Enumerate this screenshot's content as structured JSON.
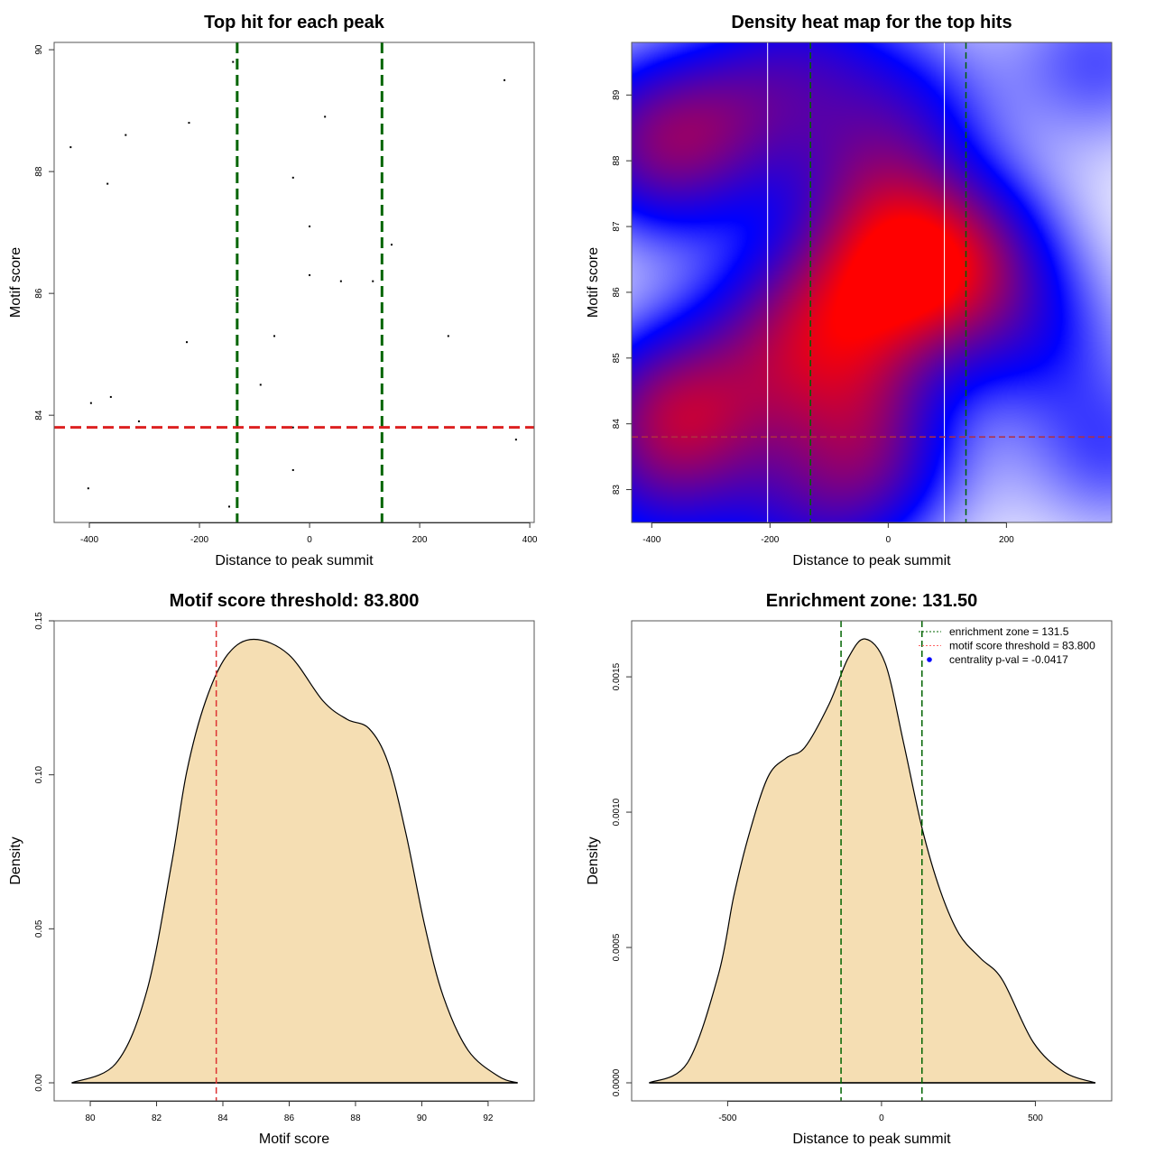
{
  "chart_data": [
    {
      "type": "scatter",
      "title": "Top hit for each peak",
      "xlabel": "Distance to peak summit",
      "ylabel": "Motif score",
      "xlim": [
        -464,
        408
      ],
      "ylim": [
        82.24,
        90.12
      ],
      "xticks": [
        -400,
        -200,
        0,
        200,
        400
      ],
      "yticks": [
        84,
        86,
        88,
        90
      ],
      "points": [
        [
          -434,
          88.4
        ],
        [
          -367,
          87.8
        ],
        [
          -334,
          88.6
        ],
        [
          -219,
          88.8
        ],
        [
          -139,
          89.8
        ],
        [
          354,
          89.5
        ],
        [
          28,
          88.9
        ],
        [
          -30,
          87.9
        ],
        [
          0,
          87.1
        ],
        [
          149,
          86.8
        ],
        [
          0,
          86.3
        ],
        [
          57,
          86.2
        ],
        [
          115,
          86.2
        ],
        [
          -131,
          85.9
        ],
        [
          -64,
          85.3
        ],
        [
          -223,
          85.2
        ],
        [
          252,
          85.3
        ],
        [
          -89,
          84.5
        ],
        [
          -361,
          84.3
        ],
        [
          -397,
          84.2
        ],
        [
          -310,
          83.9
        ],
        [
          -30,
          83.8
        ],
        [
          375,
          83.6
        ],
        [
          -30,
          83.1
        ],
        [
          -402,
          82.8
        ],
        [
          -146,
          82.5
        ]
      ],
      "vlines": [
        -131.5,
        131.5
      ],
      "hline": 83.8,
      "colors": {
        "points": "#000000",
        "vlines": "#006400",
        "hline": "#dd2222"
      }
    },
    {
      "type": "heatmap",
      "title": "Density heat map for the top hits",
      "xlabel": "Distance to peak summit",
      "ylabel": "Motif score",
      "xlim": [
        -434,
        378
      ],
      "ylim": [
        82.5,
        89.8
      ],
      "xticks": [
        -400,
        -200,
        0,
        200
      ],
      "yticks": [
        83,
        84,
        85,
        86,
        87,
        88,
        89
      ],
      "source": "kernel density of top-hit points",
      "palette": [
        "#ffffff",
        "#0000ff",
        "#ff0000"
      ],
      "white_vlines": [
        -204,
        95
      ],
      "vlines": [
        -131.5,
        131.5
      ],
      "hline": 83.8,
      "colors": {
        "vlines": "#006400",
        "hline": "#b03040"
      }
    },
    {
      "type": "area",
      "title": "Motif score threshold: 83.800",
      "xlabel": "Motif score",
      "ylabel": "Density",
      "xlim": [
        78.91,
        93.39
      ],
      "ylim": [
        -0.00586,
        0.15
      ],
      "xticks": [
        80,
        82,
        84,
        86,
        88,
        90,
        92
      ],
      "yticks": [
        0.0,
        0.05,
        0.1,
        0.15
      ],
      "ytick_labels": [
        "0.00",
        "0.05",
        "0.10",
        "0.15"
      ],
      "x": [
        79.44,
        80.78,
        81.71,
        82.45,
        82.91,
        83.48,
        84.14,
        84.93,
        85.99,
        87.02,
        87.75,
        88.41,
        88.98,
        89.52,
        90.09,
        90.65,
        91.4,
        92.33,
        92.89
      ],
      "y": [
        0,
        0.0064,
        0.03,
        0.071,
        0.101,
        0.124,
        0.139,
        0.144,
        0.139,
        0.124,
        0.118,
        0.115,
        0.104,
        0.081,
        0.051,
        0.028,
        0.0105,
        0.002,
        0
      ],
      "vline": 83.8,
      "colors": {
        "fill": "#f5deb3",
        "line": "#000000",
        "vline": "#dd3333"
      }
    },
    {
      "type": "area",
      "title": "Enrichment zone: 131.50",
      "xlabel": "Distance to peak summit",
      "ylabel": "Density",
      "xlim": [
        -812,
        748
      ],
      "ylim": [
        -6.67e-05,
        0.001707
      ],
      "xticks": [
        -500,
        0,
        500
      ],
      "yticks": [
        0,
        0.0005,
        0.001,
        0.0015
      ],
      "ytick_labels": [
        "0.0000",
        "0.0005",
        "0.0010",
        "0.0015"
      ],
      "x": [
        -755,
        -631,
        -530,
        -480,
        -430,
        -369,
        -310,
        -249,
        -170,
        -108,
        -53,
        12,
        71,
        132,
        191,
        252,
        322,
        393,
        493,
        593,
        695
      ],
      "y": [
        0,
        7.3e-05,
        0.0004,
        0.00069,
        0.00092,
        0.00113,
        0.0012,
        0.00124,
        0.0014,
        0.00157,
        0.00164,
        0.00155,
        0.00126,
        0.00094,
        0.00071,
        0.00055,
        0.00046,
        0.00038,
        0.00015,
        4e-05,
        0
      ],
      "vlines": [
        -131.5,
        131.5
      ],
      "colors": {
        "fill": "#f5deb3",
        "line": "#000000",
        "vlines": "#006400"
      },
      "legend": {
        "placement": "top-right",
        "entries": [
          {
            "label": "enrichment zone = 131.5",
            "color": "#006400",
            "style": "dotted-line"
          },
          {
            "label": "motif score threshold = 83.800",
            "color": "#ff6666",
            "style": "dotted-line"
          },
          {
            "label": "centrality p-val = -0.0417",
            "color": "#0000ff",
            "style": "point"
          }
        ]
      }
    }
  ]
}
